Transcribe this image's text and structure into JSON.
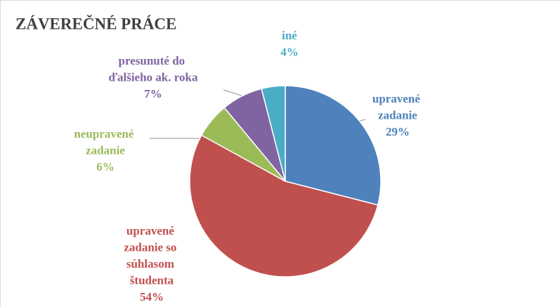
{
  "chart_data": {
    "type": "pie",
    "title": "ZÁVEREČNÉ PRÁCE",
    "categories": [
      "upravené zadanie",
      "upravené zadanie so súhlasom študenta",
      "neupravené zadanie",
      "presunuté do ďalšieho ak. roka",
      "iné"
    ],
    "values": [
      29,
      54,
      6,
      7,
      4
    ],
    "value_labels": [
      "29%",
      "54%",
      "6%",
      "7%",
      "4%"
    ],
    "colors": [
      "#4f81bd",
      "#c0504d",
      "#9bbb59",
      "#8064a2",
      "#4bacc6"
    ]
  }
}
